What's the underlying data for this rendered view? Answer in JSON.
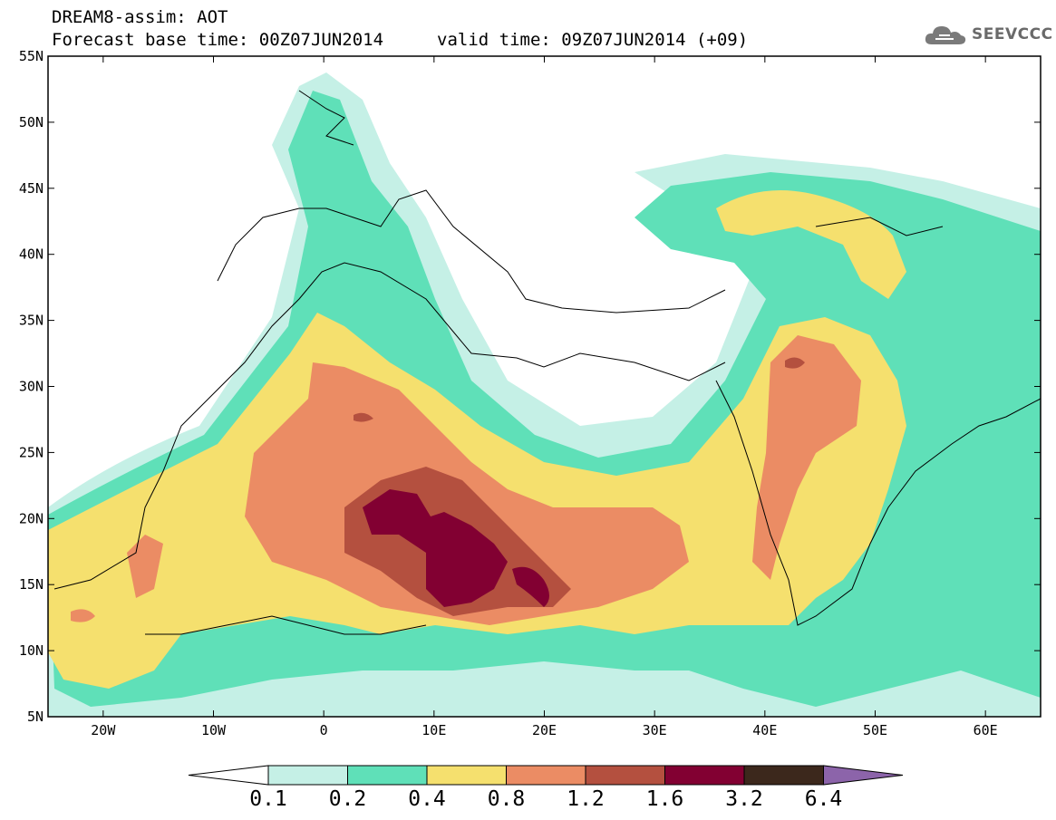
{
  "header": {
    "title": "DREAM8-assim: AOT",
    "base_time": "Forecast base time: 00Z07JUN2014",
    "valid_time": "valid time: 09Z07JUN2014 (+09)"
  },
  "logo": {
    "text": "SEEVCCC",
    "icon": "cloud-icon"
  },
  "map": {
    "projection": "lat-lon",
    "lon_range": [
      -25,
      65
    ],
    "lat_range": [
      5,
      55
    ],
    "x_ticks": [
      "20W",
      "10W",
      "0",
      "10E",
      "20E",
      "30E",
      "40E",
      "50E",
      "60E"
    ],
    "y_ticks": [
      "55N",
      "50N",
      "45N",
      "40N",
      "35N",
      "30N",
      "25N",
      "20N",
      "15N",
      "10N",
      "5N"
    ],
    "variable": "AOT"
  },
  "colorbar": {
    "labels": [
      "0.1",
      "0.2",
      "0.4",
      "0.8",
      "1.2",
      "1.6",
      "3.2",
      "6.4"
    ],
    "colors": [
      "#ffffff",
      "#c5f0e6",
      "#5fe0b8",
      "#f5e06e",
      "#eb8c64",
      "#b4503f",
      "#820032",
      "#3c281c",
      "#8c64aa"
    ]
  }
}
